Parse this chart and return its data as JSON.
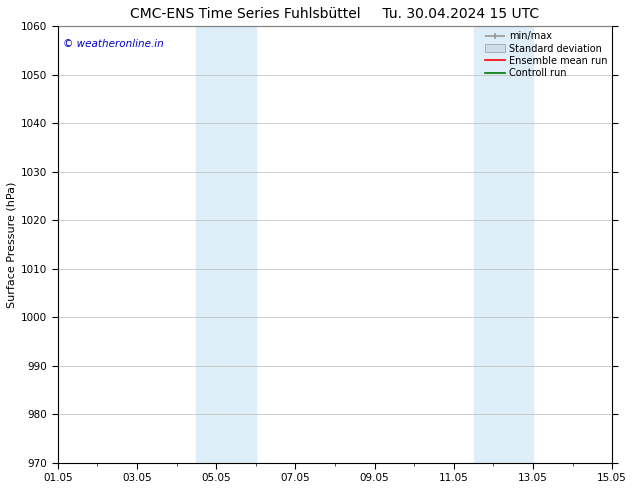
{
  "title": "CMC-ENS Time Series Fuhlsbüttel",
  "title2": "Tu. 30.04.2024 15 UTC",
  "ylabel": "Surface Pressure (hPa)",
  "ylim": [
    970,
    1060
  ],
  "yticks": [
    970,
    980,
    990,
    1000,
    1010,
    1020,
    1030,
    1040,
    1050,
    1060
  ],
  "xtick_labels": [
    "01.05",
    "03.05",
    "05.05",
    "07.05",
    "09.05",
    "11.05",
    "13.05",
    "15.05"
  ],
  "xtick_positions": [
    0,
    2,
    4,
    6,
    8,
    10,
    12,
    14
  ],
  "xlim": [
    0,
    14
  ],
  "shaded_bands": [
    {
      "x_start": 3.5,
      "x_end": 5.0
    },
    {
      "x_start": 10.5,
      "x_end": 12.0
    }
  ],
  "band_color": "#ddeef8",
  "watermark": "© weatheronline.in",
  "watermark_color": "#0000cc",
  "legend_labels": [
    "min/max",
    "Standard deviation",
    "Ensemble mean run",
    "Controll run"
  ],
  "legend_colors": [
    "#999999",
    "#ccddee",
    "#ff0000",
    "#007700"
  ],
  "bg_color": "#ffffff",
  "grid_color": "#bbbbbb",
  "title_fontsize": 10,
  "legend_fontsize": 7,
  "tick_fontsize": 7.5,
  "ylabel_fontsize": 8
}
